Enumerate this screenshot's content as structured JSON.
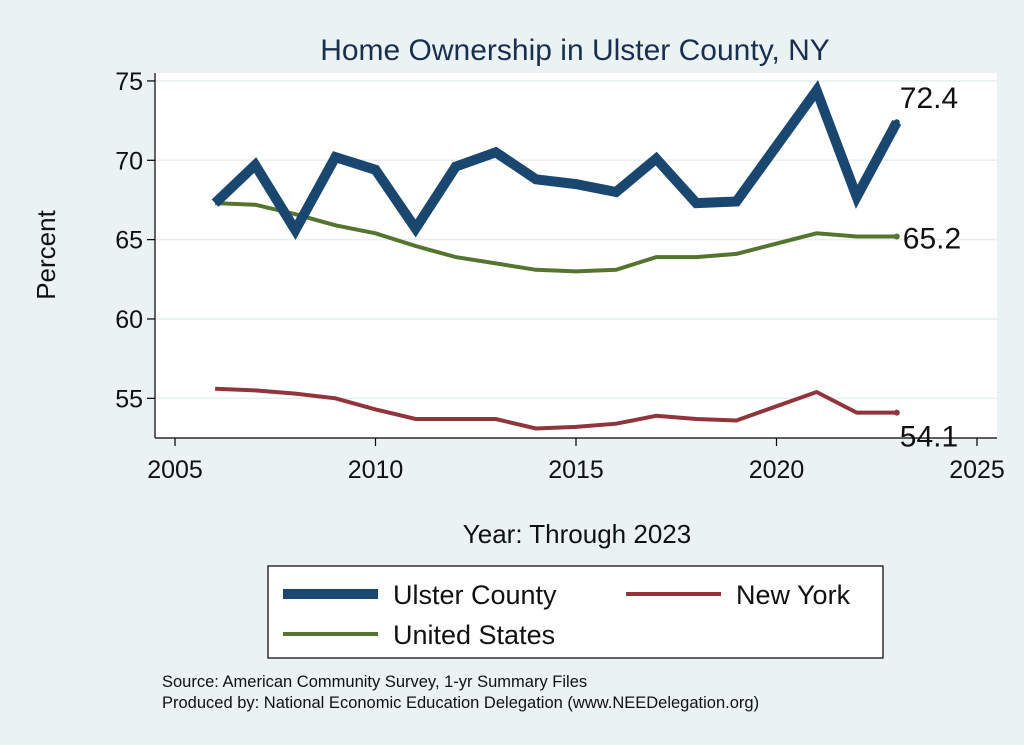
{
  "chart_data": {
    "type": "line",
    "title": "Home Ownership in Ulster County, NY",
    "xlabel": "Year: Through 2023",
    "ylabel": "Percent",
    "xlim": [
      2005,
      2025
    ],
    "ylim": [
      52.5,
      75.5
    ],
    "xticks": [
      2005,
      2010,
      2015,
      2020,
      2025
    ],
    "yticks": [
      55,
      60,
      65,
      70,
      75
    ],
    "grid": true,
    "legend_position": "bottom",
    "x": [
      2006,
      2007,
      2008,
      2009,
      2010,
      2011,
      2012,
      2013,
      2014,
      2015,
      2016,
      2017,
      2018,
      2019,
      2021,
      2022,
      2023
    ],
    "series": [
      {
        "name": "Ulster County",
        "color": "#1a476f",
        "values": [
          67.3,
          69.7,
          65.6,
          70.2,
          69.4,
          65.7,
          69.6,
          70.5,
          68.8,
          68.5,
          68.0,
          70.1,
          67.3,
          67.4,
          74.4,
          67.7,
          72.4
        ],
        "end_label": "72.4"
      },
      {
        "name": "New York",
        "color": "#90353b",
        "values": [
          55.6,
          55.5,
          55.3,
          55.0,
          54.3,
          53.7,
          53.7,
          53.7,
          53.1,
          53.2,
          53.4,
          53.9,
          53.7,
          53.6,
          55.4,
          54.1,
          54.1
        ],
        "end_label": "54.1"
      },
      {
        "name": "United States",
        "color": "#55752f",
        "values": [
          67.3,
          67.2,
          66.6,
          65.9,
          65.4,
          64.6,
          63.9,
          63.5,
          63.1,
          63.0,
          63.1,
          63.9,
          63.9,
          64.1,
          65.4,
          65.2,
          65.2
        ],
        "end_label": "65.2"
      }
    ],
    "source_note": "Source: American Community Survey, 1-yr Summary Files",
    "produced_note": "Produced by: National Economic Education Delegation (www.NEEDelegation.org)"
  }
}
